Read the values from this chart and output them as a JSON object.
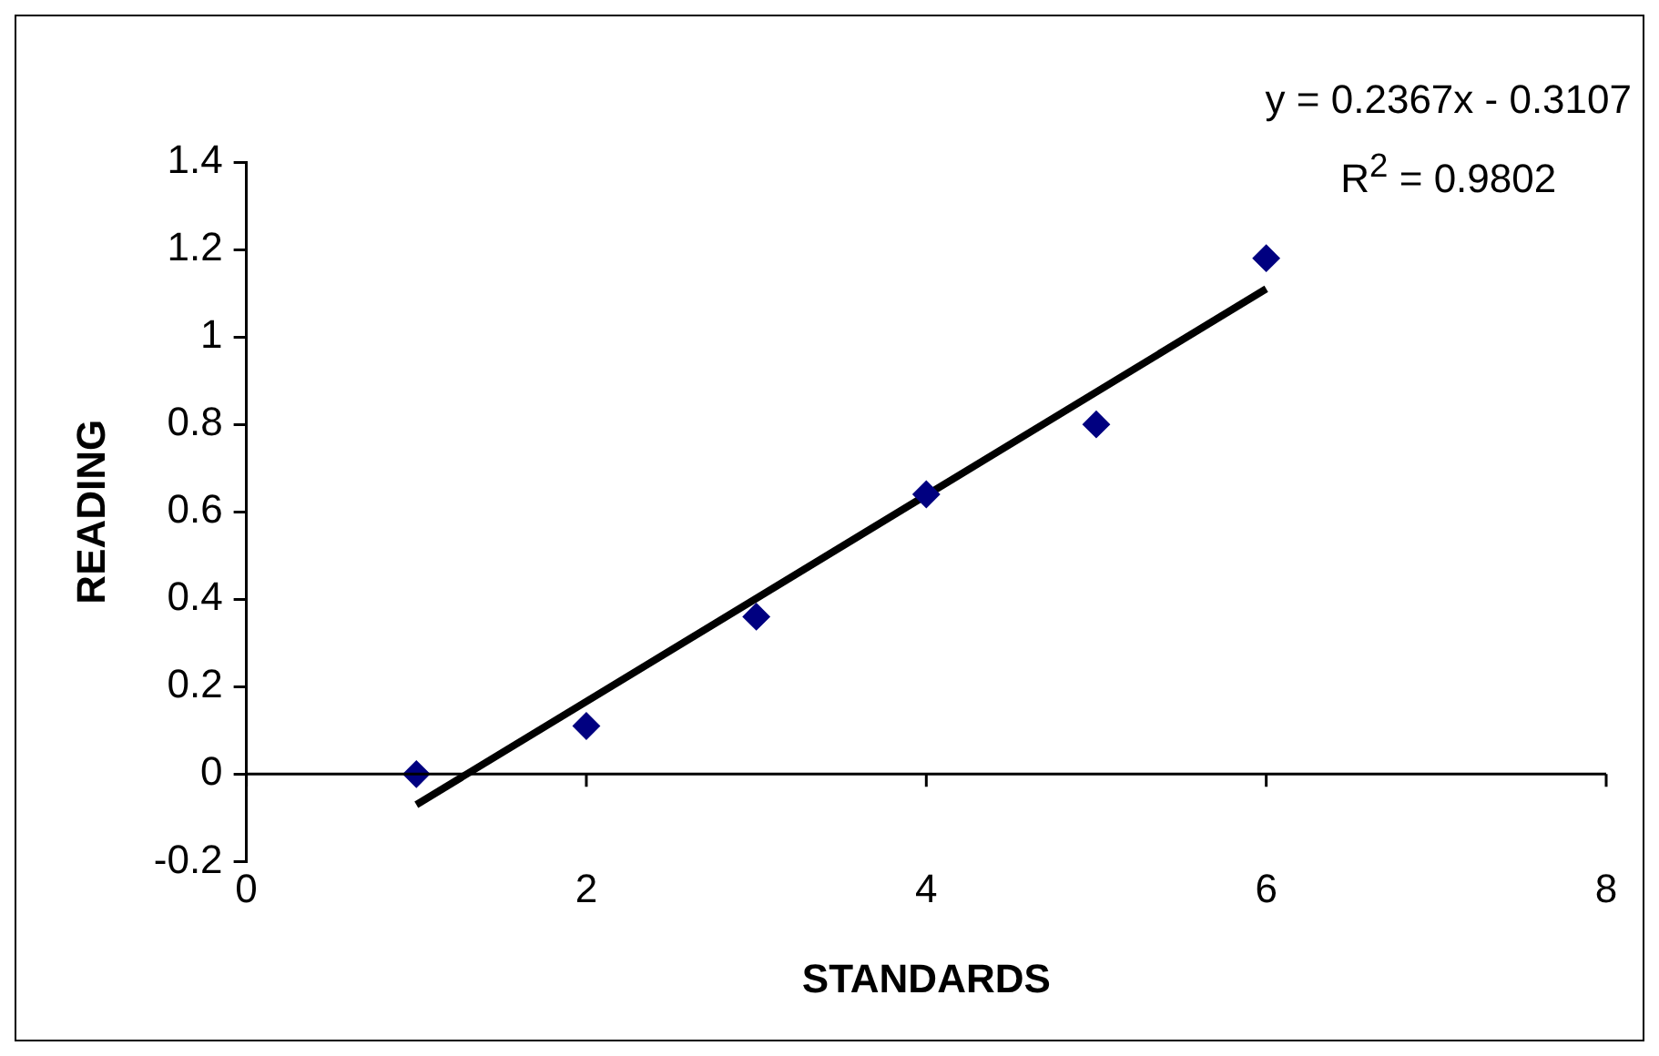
{
  "chart_data": {
    "type": "scatter",
    "xlabel": "STANDARDS",
    "ylabel": "READING",
    "xlim": [
      0,
      8
    ],
    "xticks": [
      0,
      2,
      4,
      6,
      8
    ],
    "ylim": [
      -0.2,
      1.4
    ],
    "yticks": [
      -0.2,
      0,
      0.2,
      0.4,
      0.6,
      0.8,
      1,
      1.2,
      1.4
    ],
    "grid": false,
    "legend": false,
    "marker": "diamond",
    "series": [
      {
        "color": "#000080",
        "x": [
          1,
          2,
          3,
          4,
          5,
          6
        ],
        "values": [
          0,
          0.11,
          0.36,
          0.64,
          0.8,
          1.18
        ]
      },
      {
        "type": "line",
        "marker": "none",
        "color": "#000000",
        "x": [
          1,
          6
        ],
        "values": [
          -0.07,
          1.11
        ]
      }
    ],
    "annotations": [
      "y = 0.2367x - 0.3107",
      "R$^{2}$ = 0.9802"
    ]
  }
}
